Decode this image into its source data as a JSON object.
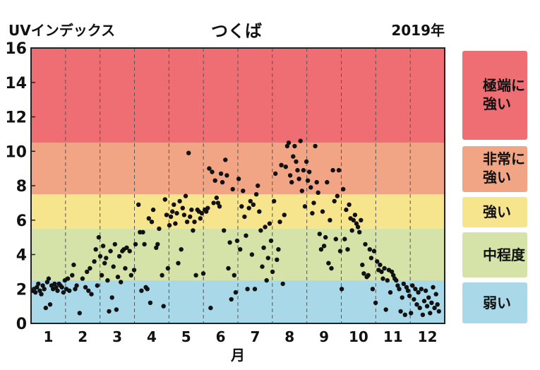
{
  "chart_data": {
    "type": "scatter",
    "title": "つくば",
    "ylabel": "UVインデックス",
    "year_label": "2019年",
    "xlabel": "月",
    "ylim": [
      0,
      16
    ],
    "yticks": [
      0,
      2,
      4,
      6,
      8,
      10,
      12,
      14,
      16
    ],
    "months": [
      "1",
      "2",
      "3",
      "4",
      "5",
      "6",
      "7",
      "8",
      "9",
      "10",
      "11",
      "12"
    ],
    "bands": [
      {
        "label": "弱い",
        "from": 0,
        "to": 2.5,
        "color": "#a9d9e8"
      },
      {
        "label": "中程度",
        "from": 2.5,
        "to": 5.5,
        "color": "#d5e3a8"
      },
      {
        "label": "強い",
        "from": 5.5,
        "to": 7.5,
        "color": "#f7e58e"
      },
      {
        "label": "非常に\n強い",
        "from": 7.5,
        "to": 10.5,
        "color": "#f1a585"
      },
      {
        "label": "極端に\n強い",
        "from": 10.5,
        "to": 16,
        "color": "#ef6e74"
      }
    ],
    "points": [
      [
        0.1,
        1.9
      ],
      [
        0.15,
        2.0
      ],
      [
        0.2,
        1.8
      ],
      [
        0.25,
        2.1
      ],
      [
        0.3,
        2.3
      ],
      [
        0.35,
        1.9
      ],
      [
        0.4,
        1.7
      ],
      [
        0.45,
        2.2
      ],
      [
        0.5,
        2.0
      ],
      [
        0.55,
        0.9
      ],
      [
        0.6,
        2.4
      ],
      [
        0.65,
        2.6
      ],
      [
        0.7,
        1.1
      ],
      [
        0.75,
        2.2
      ],
      [
        0.8,
        2.0
      ],
      [
        0.85,
        2.3
      ],
      [
        0.9,
        2.1
      ],
      [
        0.95,
        1.9
      ],
      [
        1.0,
        2.3
      ],
      [
        1.05,
        2.2
      ],
      [
        1.1,
        2.1
      ],
      [
        1.15,
        1.8
      ],
      [
        1.2,
        2.5
      ],
      [
        1.25,
        2.0
      ],
      [
        1.3,
        2.6
      ],
      [
        1.35,
        1.9
      ],
      [
        1.45,
        2.8
      ],
      [
        1.5,
        3.4
      ],
      [
        1.55,
        2.0
      ],
      [
        1.6,
        2.2
      ],
      [
        1.7,
        0.6
      ],
      [
        1.8,
        2.6
      ],
      [
        1.9,
        2.1
      ],
      [
        1.95,
        3.0
      ],
      [
        2.0,
        1.9
      ],
      [
        2.05,
        3.2
      ],
      [
        2.1,
        1.7
      ],
      [
        2.2,
        3.6
      ],
      [
        2.25,
        4.3
      ],
      [
        2.3,
        2.2
      ],
      [
        2.35,
        5.0
      ],
      [
        2.4,
        3.9
      ],
      [
        2.45,
        2.8
      ],
      [
        2.5,
        4.5
      ],
      [
        2.55,
        3.5
      ],
      [
        2.6,
        3.8
      ],
      [
        2.65,
        2.5
      ],
      [
        2.7,
        0.7
      ],
      [
        2.75,
        4.2
      ],
      [
        2.8,
        1.5
      ],
      [
        2.85,
        3.3
      ],
      [
        2.9,
        4.6
      ],
      [
        2.95,
        0.8
      ],
      [
        3.0,
        2.7
      ],
      [
        3.05,
        3.9
      ],
      [
        3.1,
        2.4
      ],
      [
        3.15,
        4.2
      ],
      [
        3.2,
        4.3
      ],
      [
        3.25,
        3.2
      ],
      [
        3.3,
        4.4
      ],
      [
        3.4,
        4.2
      ],
      [
        3.45,
        2.8
      ],
      [
        3.55,
        3.1
      ],
      [
        3.6,
        4.6
      ],
      [
        3.7,
        6.9
      ],
      [
        3.75,
        5.3
      ],
      [
        3.8,
        1.9
      ],
      [
        3.85,
        5.3
      ],
      [
        3.9,
        4.6
      ],
      [
        3.95,
        2.1
      ],
      [
        4.0,
        2.0
      ],
      [
        4.05,
        6.1
      ],
      [
        4.1,
        1.2
      ],
      [
        4.15,
        5.9
      ],
      [
        4.2,
        6.6
      ],
      [
        4.3,
        4.4
      ],
      [
        4.35,
        4.6
      ],
      [
        4.4,
        5.5
      ],
      [
        4.5,
        2.8
      ],
      [
        4.55,
        1.0
      ],
      [
        4.6,
        7.2
      ],
      [
        4.65,
        6.3
      ],
      [
        4.7,
        3.2
      ],
      [
        4.75,
        5.7
      ],
      [
        4.8,
        6.2
      ],
      [
        4.85,
        6.5
      ],
      [
        4.9,
        6.9
      ],
      [
        4.95,
        5.8
      ],
      [
        5.0,
        6.4
      ],
      [
        5.05,
        3.5
      ],
      [
        5.1,
        7.1
      ],
      [
        5.15,
        4.3
      ],
      [
        5.2,
        6.7
      ],
      [
        5.25,
        6.3
      ],
      [
        5.3,
        7.4
      ],
      [
        5.35,
        5.9
      ],
      [
        5.4,
        9.9
      ],
      [
        5.45,
        6.2
      ],
      [
        5.5,
        6.6
      ],
      [
        5.55,
        5.4
      ],
      [
        5.6,
        5.9
      ],
      [
        5.65,
        2.8
      ],
      [
        5.7,
        6.6
      ],
      [
        5.75,
        6.5
      ],
      [
        5.8,
        6.1
      ],
      [
        5.85,
        6.4
      ],
      [
        5.9,
        2.9
      ],
      [
        5.95,
        6.6
      ],
      [
        6.0,
        6.5
      ],
      [
        6.05,
        6.7
      ],
      [
        6.1,
        9.0
      ],
      [
        6.15,
        0.9
      ],
      [
        6.2,
        8.8
      ],
      [
        6.25,
        7.0
      ],
      [
        6.3,
        8.3
      ],
      [
        6.35,
        7.3
      ],
      [
        6.4,
        7.0
      ],
      [
        6.45,
        6.8
      ],
      [
        6.5,
        8.7
      ],
      [
        6.55,
        8.2
      ],
      [
        6.6,
        5.4
      ],
      [
        6.65,
        9.5
      ],
      [
        6.7,
        8.6
      ],
      [
        6.75,
        3.2
      ],
      [
        6.8,
        4.7
      ],
      [
        6.85,
        1.4
      ],
      [
        6.9,
        7.8
      ],
      [
        6.95,
        2.8
      ],
      [
        7.0,
        1.8
      ],
      [
        7.05,
        4.8
      ],
      [
        7.1,
        8.4
      ],
      [
        7.15,
        4.3
      ],
      [
        7.2,
        6.8
      ],
      [
        7.25,
        7.7
      ],
      [
        7.3,
        6.2
      ],
      [
        7.35,
        5.1
      ],
      [
        7.4,
        2.0
      ],
      [
        7.45,
        6.7
      ],
      [
        7.5,
        7.1
      ],
      [
        7.55,
        4.0
      ],
      [
        7.6,
        6.9
      ],
      [
        7.65,
        2.0
      ],
      [
        7.7,
        7.5
      ],
      [
        7.75,
        8.0
      ],
      [
        7.8,
        6.5
      ],
      [
        7.85,
        5.4
      ],
      [
        7.9,
        3.3
      ],
      [
        7.95,
        4.4
      ],
      [
        8.0,
        5.6
      ],
      [
        8.05,
        2.5
      ],
      [
        8.1,
        3.8
      ],
      [
        8.15,
        5.8
      ],
      [
        8.2,
        4.8
      ],
      [
        8.25,
        3.0
      ],
      [
        8.3,
        7.1
      ],
      [
        8.35,
        8.7
      ],
      [
        8.4,
        3.7
      ],
      [
        8.45,
        4.3
      ],
      [
        8.5,
        5.9
      ],
      [
        8.55,
        9.2
      ],
      [
        8.6,
        2.3
      ],
      [
        8.65,
        6.3
      ],
      [
        8.7,
        9.1
      ],
      [
        8.75,
        10.3
      ],
      [
        8.8,
        10.5
      ],
      [
        8.85,
        8.6
      ],
      [
        8.9,
        8.2
      ],
      [
        8.95,
        9.7
      ],
      [
        9.0,
        10.3
      ],
      [
        9.05,
        9.4
      ],
      [
        9.1,
        8.9
      ],
      [
        9.15,
        8.4
      ],
      [
        9.2,
        10.6
      ],
      [
        9.25,
        7.7
      ],
      [
        9.3,
        8.9
      ],
      [
        9.35,
        6.8
      ],
      [
        9.4,
        9.4
      ],
      [
        9.45,
        8.3
      ],
      [
        9.5,
        8.8
      ],
      [
        9.55,
        7.9
      ],
      [
        9.6,
        6.4
      ],
      [
        9.65,
        7.0
      ],
      [
        9.7,
        10.3
      ],
      [
        9.75,
        8.2
      ],
      [
        9.8,
        7.6
      ],
      [
        9.85,
        5.2
      ],
      [
        9.9,
        4.3
      ],
      [
        9.95,
        6.5
      ],
      [
        10.0,
        4.5
      ],
      [
        10.05,
        5.0
      ],
      [
        10.1,
        8.2
      ],
      [
        10.15,
        3.5
      ],
      [
        10.2,
        6.0
      ],
      [
        10.25,
        3.2
      ],
      [
        10.3,
        8.9
      ],
      [
        10.35,
        7.1
      ],
      [
        10.4,
        4.9
      ],
      [
        10.45,
        7.4
      ],
      [
        10.5,
        8.9
      ],
      [
        10.55,
        4.2
      ],
      [
        10.6,
        2.0
      ],
      [
        10.65,
        7.8
      ],
      [
        10.7,
        4.9
      ],
      [
        10.75,
        6.6
      ],
      [
        10.8,
        4.3
      ],
      [
        10.85,
        6.9
      ],
      [
        10.9,
        6.1
      ],
      [
        10.95,
        5.4
      ],
      [
        11.0,
        6.0
      ],
      [
        11.05,
        6.3
      ],
      [
        11.1,
        5.8
      ],
      [
        11.15,
        5.6
      ],
      [
        11.2,
        5.3
      ],
      [
        11.25,
        6.0
      ],
      [
        11.3,
        3.4
      ],
      [
        11.35,
        2.9
      ],
      [
        11.4,
        4.6
      ],
      [
        11.45,
        2.7
      ],
      [
        11.5,
        2.8
      ],
      [
        11.55,
        4.3
      ],
      [
        11.6,
        3.8
      ],
      [
        11.65,
        2.0
      ],
      [
        11.7,
        4.2
      ],
      [
        11.75,
        1.2
      ],
      [
        11.8,
        3.6
      ],
      [
        11.85,
        3.1
      ],
      [
        11.9,
        3.4
      ],
      [
        11.95,
        3.0
      ],
      [
        12.0,
        2.6
      ],
      [
        12.05,
        3.2
      ],
      [
        12.1,
        0.8
      ],
      [
        12.15,
        2.5
      ],
      [
        12.2,
        3.1
      ],
      [
        12.25,
        1.8
      ],
      [
        12.3,
        3.0
      ],
      [
        12.35,
        2.8
      ],
      [
        12.4,
        2.6
      ],
      [
        12.45,
        2.5
      ],
      [
        12.5,
        2.2
      ],
      [
        12.55,
        2.0
      ],
      [
        12.6,
        0.7
      ],
      [
        12.65,
        1.5
      ],
      [
        12.7,
        2.3
      ],
      [
        12.75,
        0.5
      ],
      [
        12.8,
        2.1
      ],
      [
        12.85,
        1.9
      ],
      [
        12.9,
        1.6
      ],
      [
        12.95,
        0.6
      ],
      [
        13.0,
        2.2
      ],
      [
        13.05,
        1.4
      ],
      [
        13.1,
        2.0
      ],
      [
        13.15,
        1.1
      ],
      [
        13.2,
        1.8
      ],
      [
        13.25,
        0.9
      ],
      [
        13.3,
        2.0
      ],
      [
        13.35,
        0.5
      ],
      [
        13.4,
        1.3
      ],
      [
        13.45,
        1.9
      ],
      [
        13.5,
        1.0
      ],
      [
        13.55,
        1.5
      ],
      [
        13.6,
        0.6
      ],
      [
        13.65,
        1.2
      ],
      [
        13.7,
        2.1
      ],
      [
        13.75,
        0.9
      ],
      [
        13.8,
        1.7
      ],
      [
        13.85,
        1.1
      ],
      [
        13.9,
        0.7
      ]
    ]
  }
}
